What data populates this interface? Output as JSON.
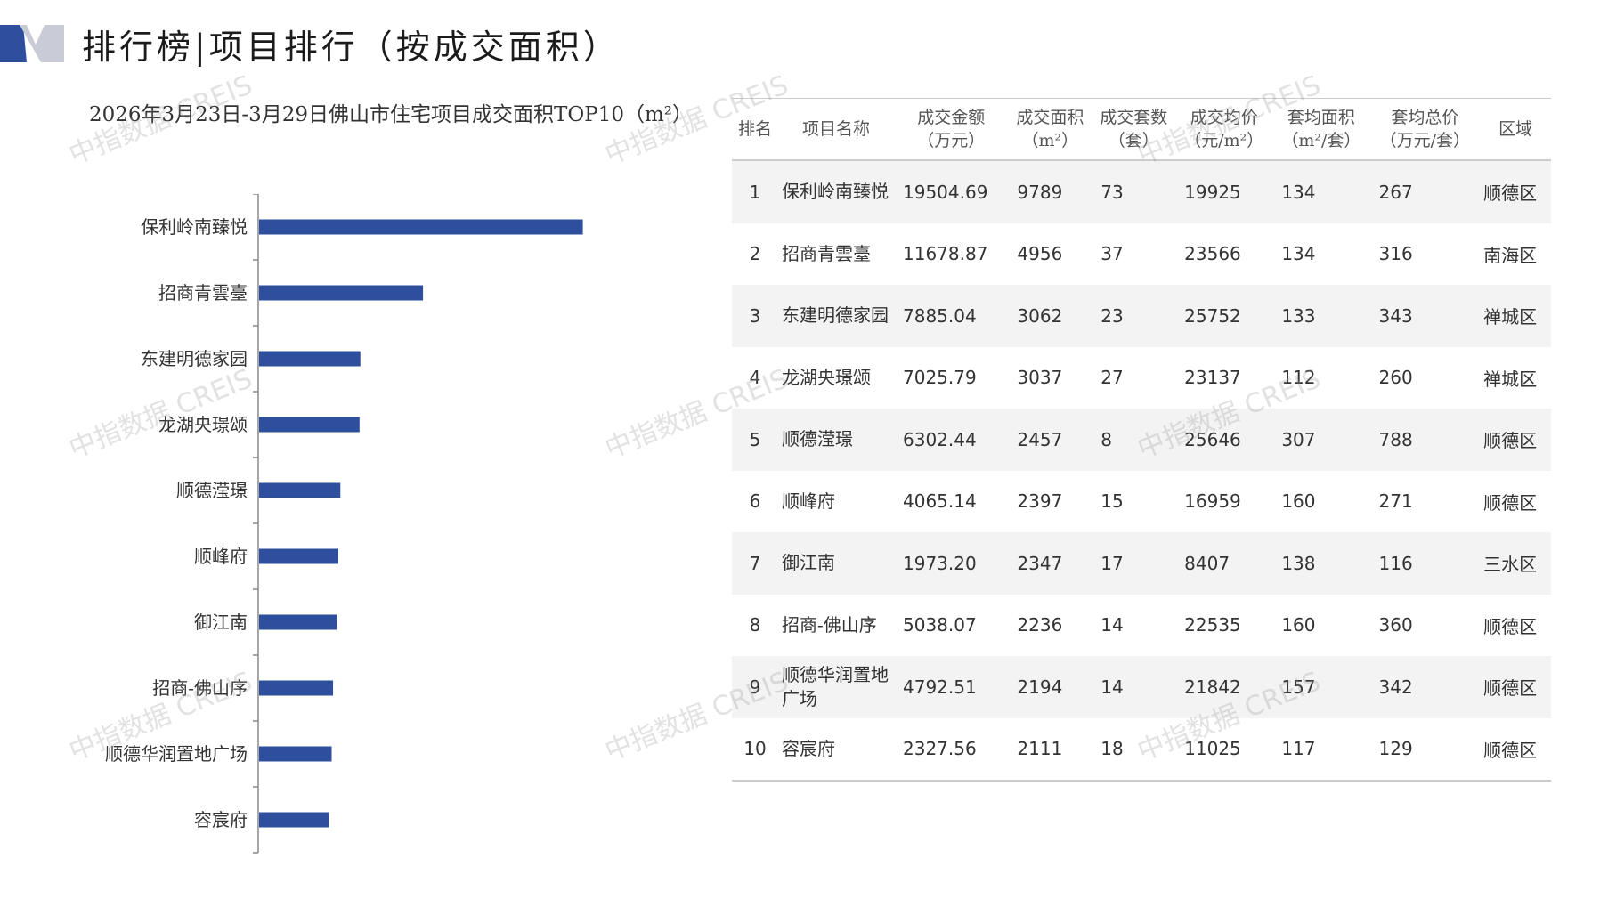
{
  "page_title": "排行榜|项目排行（按成交面积）",
  "chart_title": "2026年3月23日-3月29日佛山市住宅项目成交面积TOP10（m²）",
  "watermark_text": "中指数据 CREIS",
  "colors": {
    "bar": "#2e4f9e",
    "logo_dark": "#2e4f9e",
    "logo_light": "#c9ccd6"
  },
  "chart_data": {
    "type": "bar",
    "orientation": "horizontal",
    "title": "2026年3月23日-3月29日佛山市住宅项目成交面积TOP10（m²）",
    "categories": [
      "保利岭南臻悦",
      "招商青雲臺",
      "东建明德家园",
      "龙湖央璟颂",
      "顺德滢璟",
      "顺峰府",
      "御江南",
      "招商-佛山序",
      "顺德华润置地广场",
      "容宸府"
    ],
    "values": [
      9789,
      4956,
      3062,
      3037,
      2457,
      2397,
      2347,
      2236,
      2194,
      2111
    ],
    "xlim": [
      0,
      14000
    ],
    "grid": false,
    "legend": "none"
  },
  "table": {
    "headers": [
      {
        "line1": "排名",
        "line2": ""
      },
      {
        "line1": "项目名称",
        "line2": ""
      },
      {
        "line1": "成交金额",
        "line2": "（万元）"
      },
      {
        "line1": "成交面积",
        "line2": "（m²）"
      },
      {
        "line1": "成交套数",
        "line2": "（套）"
      },
      {
        "line1": "成交均价",
        "line2": "（元/m²）"
      },
      {
        "line1": "套均面积",
        "line2": "（m²/套）"
      },
      {
        "line1": "套均总价",
        "line2": "（万元/套）"
      },
      {
        "line1": "区域",
        "line2": ""
      }
    ],
    "rows": [
      [
        "1",
        "保利岭南臻悦",
        "19504.69",
        "9789",
        "73",
        "19925",
        "134",
        "267",
        "顺德区"
      ],
      [
        "2",
        "招商青雲臺",
        "11678.87",
        "4956",
        "37",
        "23566",
        "134",
        "316",
        "南海区"
      ],
      [
        "3",
        "东建明德家园",
        "7885.04",
        "3062",
        "23",
        "25752",
        "133",
        "343",
        "禅城区"
      ],
      [
        "4",
        "龙湖央璟颂",
        "7025.79",
        "3037",
        "27",
        "23137",
        "112",
        "260",
        "禅城区"
      ],
      [
        "5",
        "顺德滢璟",
        "6302.44",
        "2457",
        "8",
        "25646",
        "307",
        "788",
        "顺德区"
      ],
      [
        "6",
        "顺峰府",
        "4065.14",
        "2397",
        "15",
        "16959",
        "160",
        "271",
        "顺德区"
      ],
      [
        "7",
        "御江南",
        "1973.20",
        "2347",
        "17",
        "8407",
        "138",
        "116",
        "三水区"
      ],
      [
        "8",
        "招商-佛山序",
        "5038.07",
        "2236",
        "14",
        "22535",
        "160",
        "360",
        "顺德区"
      ],
      [
        "9",
        "顺德华润置地广场",
        "4792.51",
        "2194",
        "14",
        "21842",
        "157",
        "342",
        "顺德区"
      ],
      [
        "10",
        "容宸府",
        "2327.56",
        "2111",
        "18",
        "11025",
        "117",
        "129",
        "顺德区"
      ]
    ]
  }
}
